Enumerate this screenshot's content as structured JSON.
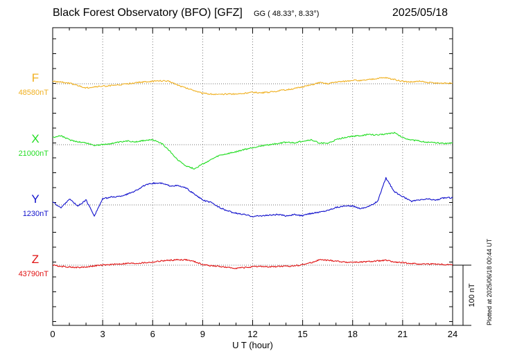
{
  "header": {
    "title": "Black Forest Observatory (BFO)  [GFZ]",
    "coords": "GG ( 48.33°,   8.33°)",
    "date": "2025/05/18"
  },
  "footer": "Plotted at 2025/06/18 00:44 UT",
  "colors": {
    "F": "#f0b020",
    "X": "#22dd22",
    "Y": "#1010cc",
    "Z": "#e01010"
  },
  "chart_data": {
    "type": "line",
    "xlabel": "U T (hour)",
    "xlim": [
      0,
      24
    ],
    "xticks": [
      0,
      3,
      6,
      9,
      12,
      15,
      18,
      21,
      24
    ],
    "scale_bar": {
      "label": "100 nT",
      "value_nT": 100
    },
    "series": [
      {
        "name": "F",
        "baseline_label": "48580nT",
        "baseline_nT": 48580,
        "x": [
          0,
          0.5,
          1,
          1.5,
          2,
          2.5,
          3,
          3.5,
          4,
          4.5,
          5,
          5.5,
          6,
          6.5,
          7,
          7.5,
          8,
          8.5,
          9,
          9.5,
          10,
          10.5,
          11,
          11.5,
          12,
          12.5,
          13,
          13.5,
          14,
          14.5,
          15,
          15.5,
          16,
          16.5,
          17,
          17.5,
          18,
          18.5,
          19,
          19.5,
          20,
          20.5,
          21,
          21.5,
          22,
          22.5,
          23,
          23.5,
          24
        ],
        "values": [
          48584,
          48583,
          48581,
          48577,
          48573,
          48575,
          48576,
          48577,
          48578,
          48580,
          48582,
          48583,
          48584,
          48585,
          48584,
          48578,
          48573,
          48569,
          48564,
          48563,
          48562,
          48563,
          48563,
          48564,
          48566,
          48565,
          48566,
          48568,
          48570,
          48572,
          48575,
          48578,
          48582,
          48580,
          48583,
          48584,
          48586,
          48585,
          48587,
          48589,
          48590,
          48587,
          48584,
          48583,
          48584,
          48582,
          48581,
          48581,
          48581
        ]
      },
      {
        "name": "X",
        "baseline_label": "21000nT",
        "baseline_nT": 21000,
        "x": [
          0,
          0.5,
          1,
          1.5,
          2,
          2.5,
          3,
          3.5,
          4,
          4.5,
          5,
          5.5,
          6,
          6.5,
          7,
          7.5,
          8,
          8.5,
          9,
          9.5,
          10,
          10.5,
          11,
          11.5,
          12,
          12.5,
          13,
          13.5,
          14,
          14.5,
          15,
          15.5,
          16,
          16.5,
          17,
          17.5,
          18,
          18.5,
          19,
          19.5,
          20,
          20.5,
          21,
          21.5,
          22,
          22.5,
          23,
          23.5,
          24
        ],
        "values": [
          21012,
          21015,
          21008,
          21005,
          21003,
          20999,
          21000,
          21002,
          21004,
          21006,
          21005,
          21007,
          21008,
          21003,
          20990,
          20975,
          20965,
          20960,
          20968,
          20975,
          20982,
          20985,
          20988,
          20992,
          20995,
          20998,
          21000,
          21002,
          21004,
          21003,
          21006,
          21008,
          21003,
          21002,
          21008,
          21012,
          21014,
          21015,
          21017,
          21016,
          21018,
          21020,
          21012,
          21008,
          21006,
          21004,
          21003,
          21002,
          21003
        ]
      },
      {
        "name": "Y",
        "baseline_label": "1230nT",
        "baseline_nT": 1230,
        "x": [
          0,
          0.5,
          1,
          1.5,
          2,
          2.5,
          3,
          3.5,
          4,
          4.5,
          5,
          5.5,
          6,
          6.5,
          7,
          7.5,
          8,
          8.5,
          9,
          9.5,
          10,
          10.5,
          11,
          11.5,
          12,
          12.5,
          13,
          13.5,
          14,
          14.5,
          15,
          15.5,
          16,
          16.5,
          17,
          17.5,
          18,
          18.5,
          19,
          19.5,
          20,
          20.5,
          21,
          21.5,
          22,
          22.5,
          23,
          23.5,
          24
        ],
        "values": [
          1235,
          1225,
          1240,
          1228,
          1238,
          1212,
          1240,
          1243,
          1244,
          1248,
          1254,
          1262,
          1266,
          1266,
          1262,
          1262,
          1258,
          1248,
          1238,
          1234,
          1226,
          1220,
          1216,
          1214,
          1211,
          1212,
          1213,
          1214,
          1212,
          1214,
          1212,
          1216,
          1218,
          1221,
          1226,
          1228,
          1228,
          1224,
          1228,
          1236,
          1275,
          1252,
          1244,
          1236,
          1238,
          1240,
          1238,
          1242,
          1242
        ]
      },
      {
        "name": "Z",
        "baseline_label": "43790nT",
        "baseline_nT": 43790,
        "x": [
          0,
          0.5,
          1,
          1.5,
          2,
          2.5,
          3,
          3.5,
          4,
          4.5,
          5,
          5.5,
          6,
          6.5,
          7,
          7.5,
          8,
          8.5,
          9,
          9.5,
          10,
          10.5,
          11,
          11.5,
          12,
          12.5,
          13,
          13.5,
          14,
          14.5,
          15,
          15.5,
          16,
          16.5,
          17,
          17.5,
          18,
          18.5,
          19,
          19.5,
          20,
          20.5,
          21,
          21.5,
          22,
          22.5,
          23,
          23.5,
          24
        ],
        "values": [
          43790,
          43788,
          43787,
          43786,
          43787,
          43789,
          43790,
          43791,
          43792,
          43793,
          43793,
          43794,
          43795,
          43797,
          43798,
          43799,
          43799,
          43796,
          43791,
          43789,
          43788,
          43786,
          43785,
          43786,
          43787,
          43788,
          43787,
          43788,
          43788,
          43789,
          43791,
          43794,
          43799,
          43798,
          43797,
          43795,
          43795,
          43795,
          43796,
          43797,
          43798,
          43795,
          43794,
          43793,
          43792,
          43792,
          43792,
          43791,
          43791
        ]
      }
    ]
  }
}
